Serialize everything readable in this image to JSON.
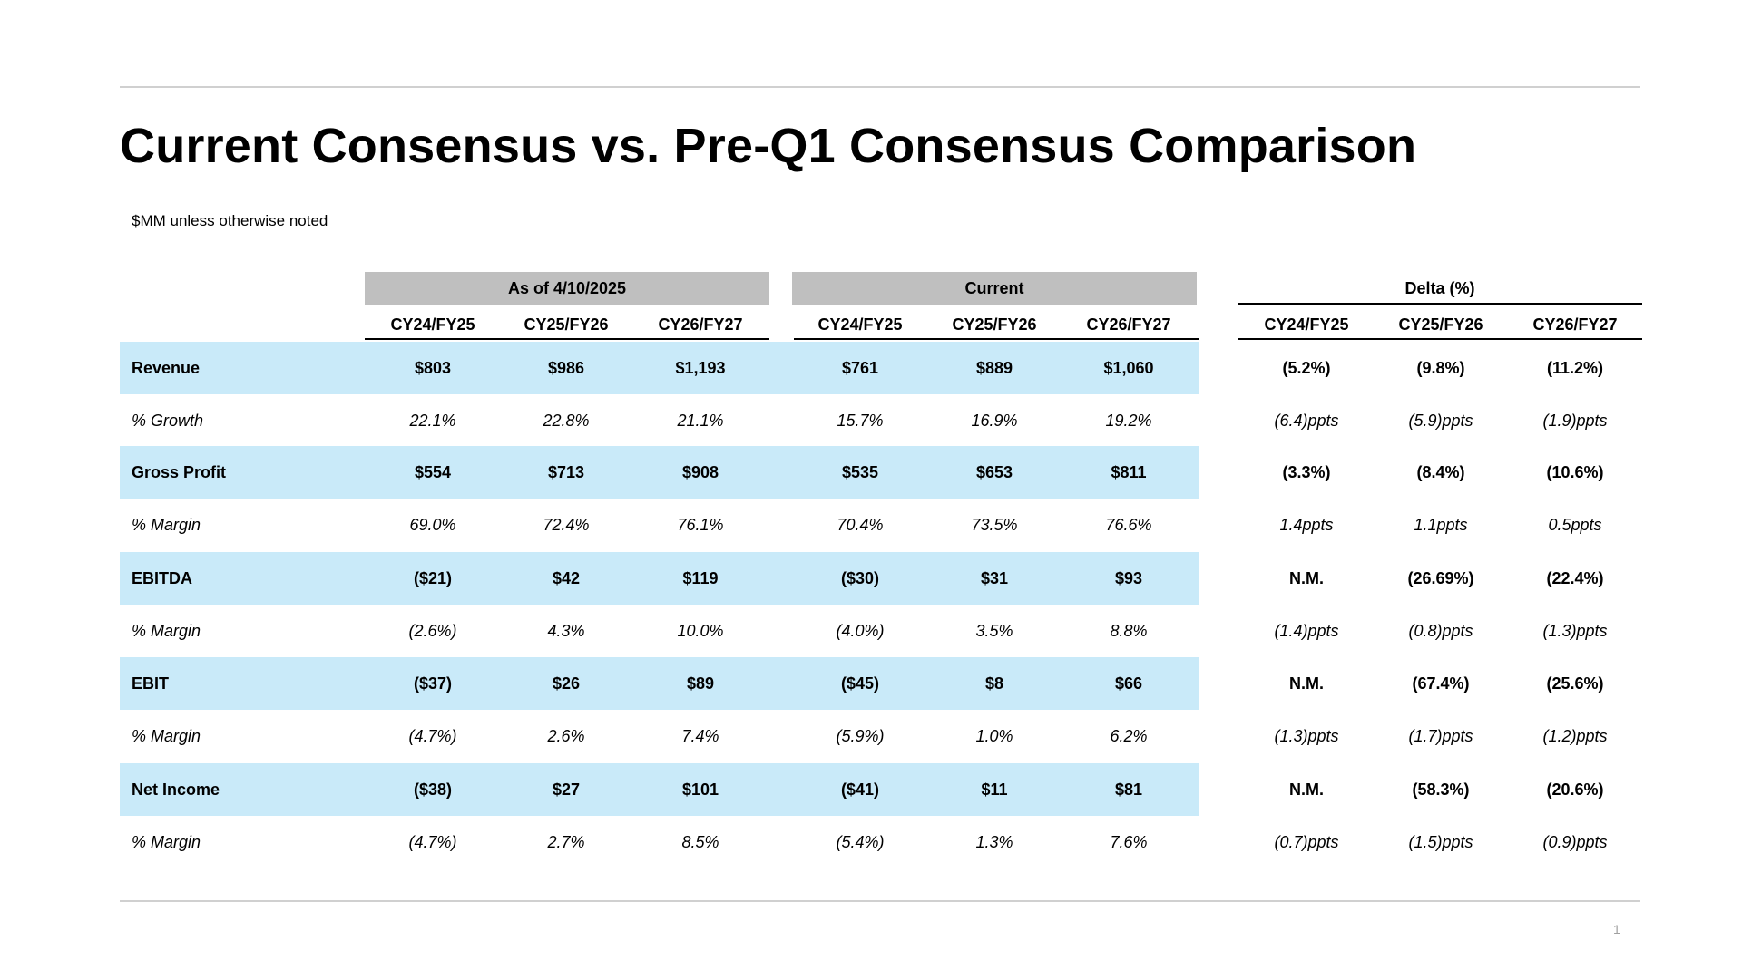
{
  "title": "Current Consensus vs. Pre-Q1 Consensus Comparison",
  "subtitle": "$MM unless otherwise noted",
  "page_number": "1",
  "groups": {
    "as_of": "As of 4/10/2025",
    "current": "Current",
    "delta": "Delta (%)"
  },
  "columns": [
    "CY24/FY25",
    "CY25/FY26",
    "CY26/FY27",
    "CY24/FY25",
    "CY25/FY26",
    "CY26/FY27",
    "CY24/FY25",
    "CY25/FY26",
    "CY26/FY27"
  ],
  "rows": [
    {
      "label": "Revenue",
      "values": [
        "$803",
        "$986",
        "$1,193",
        "$761",
        "$889",
        "$1,060",
        "(5.2%)",
        "(9.8%)",
        "(11.2%)"
      ]
    },
    {
      "label": "% Growth",
      "values": [
        "22.1%",
        "22.8%",
        "21.1%",
        "15.7%",
        "16.9%",
        "19.2%",
        "(6.4)ppts",
        "(5.9)ppts",
        "(1.9)ppts"
      ]
    },
    {
      "label": "Gross Profit",
      "values": [
        "$554",
        "$713",
        "$908",
        "$535",
        "$653",
        "$811",
        "(3.3%)",
        "(8.4%)",
        "(10.6%)"
      ]
    },
    {
      "label": "% Margin",
      "values": [
        "69.0%",
        "72.4%",
        "76.1%",
        "70.4%",
        "73.5%",
        "76.6%",
        "1.4ppts",
        "1.1ppts",
        "0.5ppts"
      ]
    },
    {
      "label": "EBITDA",
      "values": [
        "($21)",
        "$42",
        "$119",
        "($30)",
        "$31",
        "$93",
        "N.M.",
        "(26.69%)",
        "(22.4%)"
      ]
    },
    {
      "label": "% Margin",
      "values": [
        "(2.6%)",
        "4.3%",
        "10.0%",
        "(4.0%)",
        "3.5%",
        "8.8%",
        "(1.4)ppts",
        "(0.8)ppts",
        "(1.3)ppts"
      ]
    },
    {
      "label": "EBIT",
      "values": [
        "($37)",
        "$26",
        "$89",
        "($45)",
        "$8",
        "$66",
        "N.M.",
        "(67.4%)",
        "(25.6%)"
      ]
    },
    {
      "label": "% Margin",
      "values": [
        "(4.7%)",
        "2.6%",
        "7.4%",
        "(5.9%)",
        "1.0%",
        "6.2%",
        "(1.3)ppts",
        "(1.7)ppts",
        "(1.2)ppts"
      ]
    },
    {
      "label": "Net Income",
      "values": [
        "($38)",
        "$27",
        "$101",
        "($41)",
        "$11",
        "$81",
        "N.M.",
        "(58.3%)",
        "(20.6%)"
      ]
    },
    {
      "label": "% Margin",
      "values": [
        "(4.7%)",
        "2.7%",
        "8.5%",
        "(5.4%)",
        "1.3%",
        "7.6%",
        "(0.7)ppts",
        "(1.5)ppts",
        "(0.9)ppts"
      ]
    }
  ],
  "colors": {
    "band": "#c9eaf9",
    "group_header": "#bfbfbf",
    "rule": "#d0d0d0"
  }
}
